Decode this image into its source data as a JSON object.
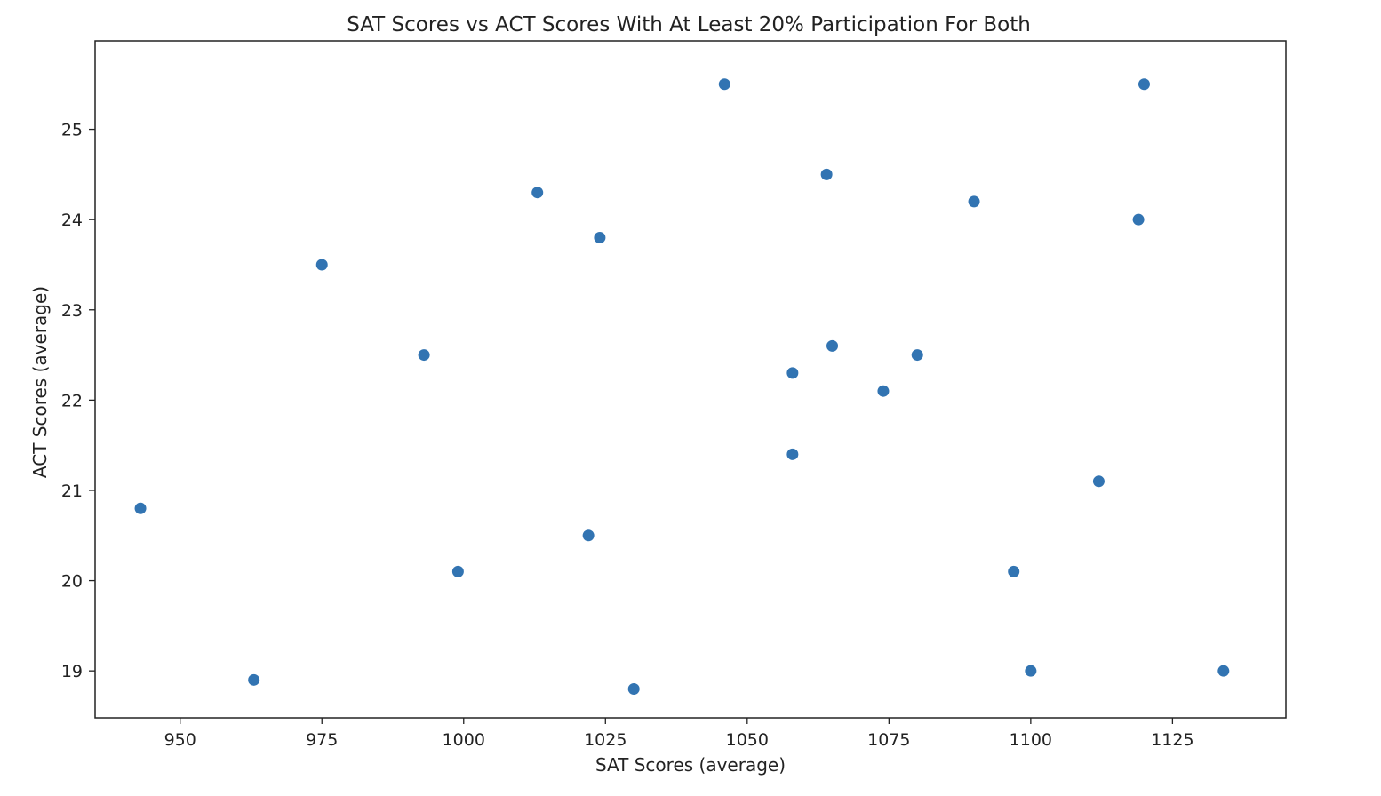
{
  "chart_data": {
    "type": "scatter",
    "title": "SAT Scores vs ACT Scores With At Least 20% Participation For Both",
    "xlabel": "SAT Scores (average)",
    "ylabel": "ACT Scores (average)",
    "xlim": [
      935,
      1145
    ],
    "ylim": [
      18.48,
      25.98
    ],
    "xticks": [
      950,
      975,
      1000,
      1025,
      1050,
      1075,
      1100,
      1125
    ],
    "yticks": [
      19,
      20,
      21,
      22,
      23,
      24,
      25
    ],
    "grid": false,
    "marker_color": "#3274b2",
    "points": [
      {
        "x": 943,
        "y": 20.8
      },
      {
        "x": 963,
        "y": 18.9
      },
      {
        "x": 975,
        "y": 23.5
      },
      {
        "x": 993,
        "y": 22.5
      },
      {
        "x": 999,
        "y": 20.1
      },
      {
        "x": 1013,
        "y": 24.3
      },
      {
        "x": 1022,
        "y": 20.5
      },
      {
        "x": 1024,
        "y": 23.8
      },
      {
        "x": 1030,
        "y": 18.8
      },
      {
        "x": 1046,
        "y": 25.5
      },
      {
        "x": 1058,
        "y": 22.3
      },
      {
        "x": 1058,
        "y": 21.4
      },
      {
        "x": 1064,
        "y": 24.5
      },
      {
        "x": 1065,
        "y": 22.6
      },
      {
        "x": 1074,
        "y": 22.1
      },
      {
        "x": 1080,
        "y": 22.5
      },
      {
        "x": 1090,
        "y": 24.2
      },
      {
        "x": 1097,
        "y": 20.1
      },
      {
        "x": 1100,
        "y": 19.0
      },
      {
        "x": 1112,
        "y": 21.1
      },
      {
        "x": 1119,
        "y": 24.0
      },
      {
        "x": 1120,
        "y": 25.5
      },
      {
        "x": 1134,
        "y": 19.0
      }
    ]
  }
}
